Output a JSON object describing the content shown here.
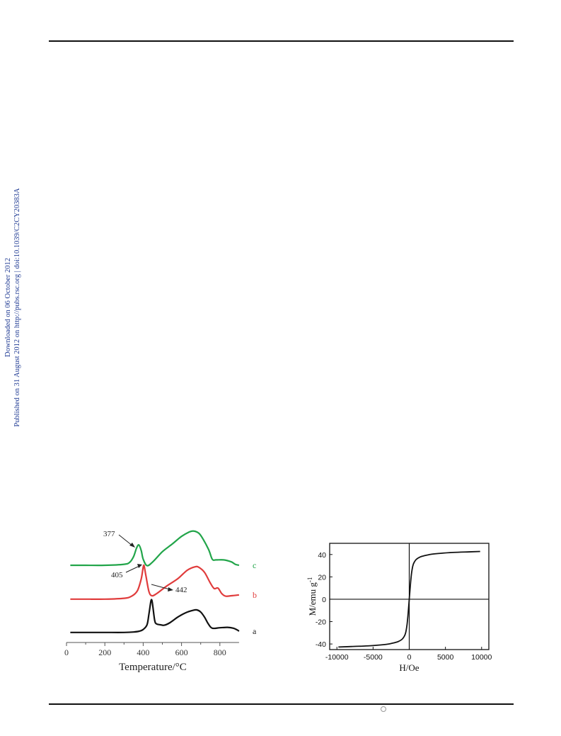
{
  "side_text": {
    "line1": "Downloaded on 06 October 2012",
    "line2": "Published on 31 August 2012 on http://pubs.rsc.org | doi:10.1039/C2CY20383A",
    "color": "#1f3a93"
  },
  "chart_data": [
    {
      "type": "line",
      "title": "",
      "xlabel": "Temperature/°C",
      "ylabel": "",
      "xlim": [
        0,
        900
      ],
      "x_ticks": [
        0,
        200,
        400,
        600,
        800
      ],
      "grid": false,
      "series": [
        {
          "name": "a",
          "color": "#111111",
          "x": [
            20,
            100,
            200,
            300,
            350,
            380,
            400,
            420,
            430,
            440,
            445,
            450,
            460,
            470,
            490,
            510,
            540,
            580,
            620,
            660,
            680,
            700,
            720,
            740,
            760,
            800,
            840,
            870,
            890,
            900
          ],
          "y": [
            0.02,
            0.02,
            0.02,
            0.02,
            0.03,
            0.05,
            0.09,
            0.2,
            0.45,
            0.75,
            0.78,
            0.65,
            0.3,
            0.22,
            0.2,
            0.19,
            0.25,
            0.38,
            0.48,
            0.54,
            0.55,
            0.5,
            0.38,
            0.22,
            0.12,
            0.13,
            0.14,
            0.12,
            0.08,
            0.05
          ]
        },
        {
          "name": "b",
          "color": "#e03c3c",
          "x": [
            20,
            100,
            200,
            300,
            340,
            370,
            390,
            400,
            405,
            415,
            430,
            445,
            470,
            520,
            580,
            630,
            670,
            690,
            720,
            750,
            770,
            790,
            810,
            830,
            860,
            900
          ],
          "y": [
            0.02,
            0.02,
            0.02,
            0.04,
            0.09,
            0.22,
            0.5,
            0.77,
            0.8,
            0.55,
            0.2,
            0.1,
            0.15,
            0.32,
            0.5,
            0.7,
            0.78,
            0.77,
            0.65,
            0.4,
            0.27,
            0.28,
            0.15,
            0.09,
            0.1,
            0.12
          ]
        },
        {
          "name": "c",
          "color": "#22a54a",
          "x": [
            20,
            100,
            200,
            300,
            330,
            350,
            365,
            377,
            390,
            400,
            420,
            450,
            500,
            550,
            600,
            640,
            660,
            680,
            700,
            740,
            760,
            780,
            820,
            860,
            880,
            900
          ],
          "y": [
            0.02,
            0.02,
            0.02,
            0.05,
            0.11,
            0.28,
            0.52,
            0.62,
            0.45,
            0.2,
            0.01,
            0.12,
            0.42,
            0.64,
            0.87,
            1.0,
            1.03,
            1.0,
            0.9,
            0.5,
            0.2,
            0.18,
            0.18,
            0.12,
            0.05,
            0.02
          ]
        }
      ],
      "annotations": [
        {
          "text": "377",
          "x": 377
        },
        {
          "text": "405",
          "x": 405
        },
        {
          "text": "442",
          "x": 442
        }
      ],
      "series_labels": [
        "a",
        "b",
        "c"
      ]
    },
    {
      "type": "line",
      "title": "",
      "xlabel": "H/Oe",
      "ylabel": "M/emu g-1",
      "xlim": [
        -11000,
        11000
      ],
      "ylim": [
        -45,
        50
      ],
      "x_ticks": [
        -10000,
        -5000,
        0,
        5000,
        10000
      ],
      "x_tick_labels": [
        "-10000",
        "-5000",
        "0",
        "5000",
        "10000"
      ],
      "y_ticks": [
        -40,
        -20,
        0,
        20,
        40
      ],
      "y_tick_labels": [
        "-40",
        "-20",
        "0",
        "20",
        "40"
      ],
      "grid": false,
      "series": [
        {
          "name": "",
          "color": "#111111",
          "x": [
            -9800,
            -8000,
            -6000,
            -4000,
            -3000,
            -2000,
            -1500,
            -1000,
            -700,
            -500,
            -300,
            -150,
            0,
            150,
            300,
            500,
            700,
            1000,
            1500,
            2000,
            3000,
            4000,
            6000,
            8000,
            9800
          ],
          "y": [
            -42.7,
            -42.3,
            -41.8,
            -40.9,
            -40.2,
            -38.8,
            -37.8,
            -35.8,
            -33.3,
            -30.0,
            -22.5,
            -12.0,
            0,
            12.0,
            22.5,
            30.0,
            33.3,
            35.8,
            37.8,
            38.8,
            40.2,
            40.9,
            41.8,
            42.3,
            42.7
          ]
        }
      ]
    }
  ]
}
